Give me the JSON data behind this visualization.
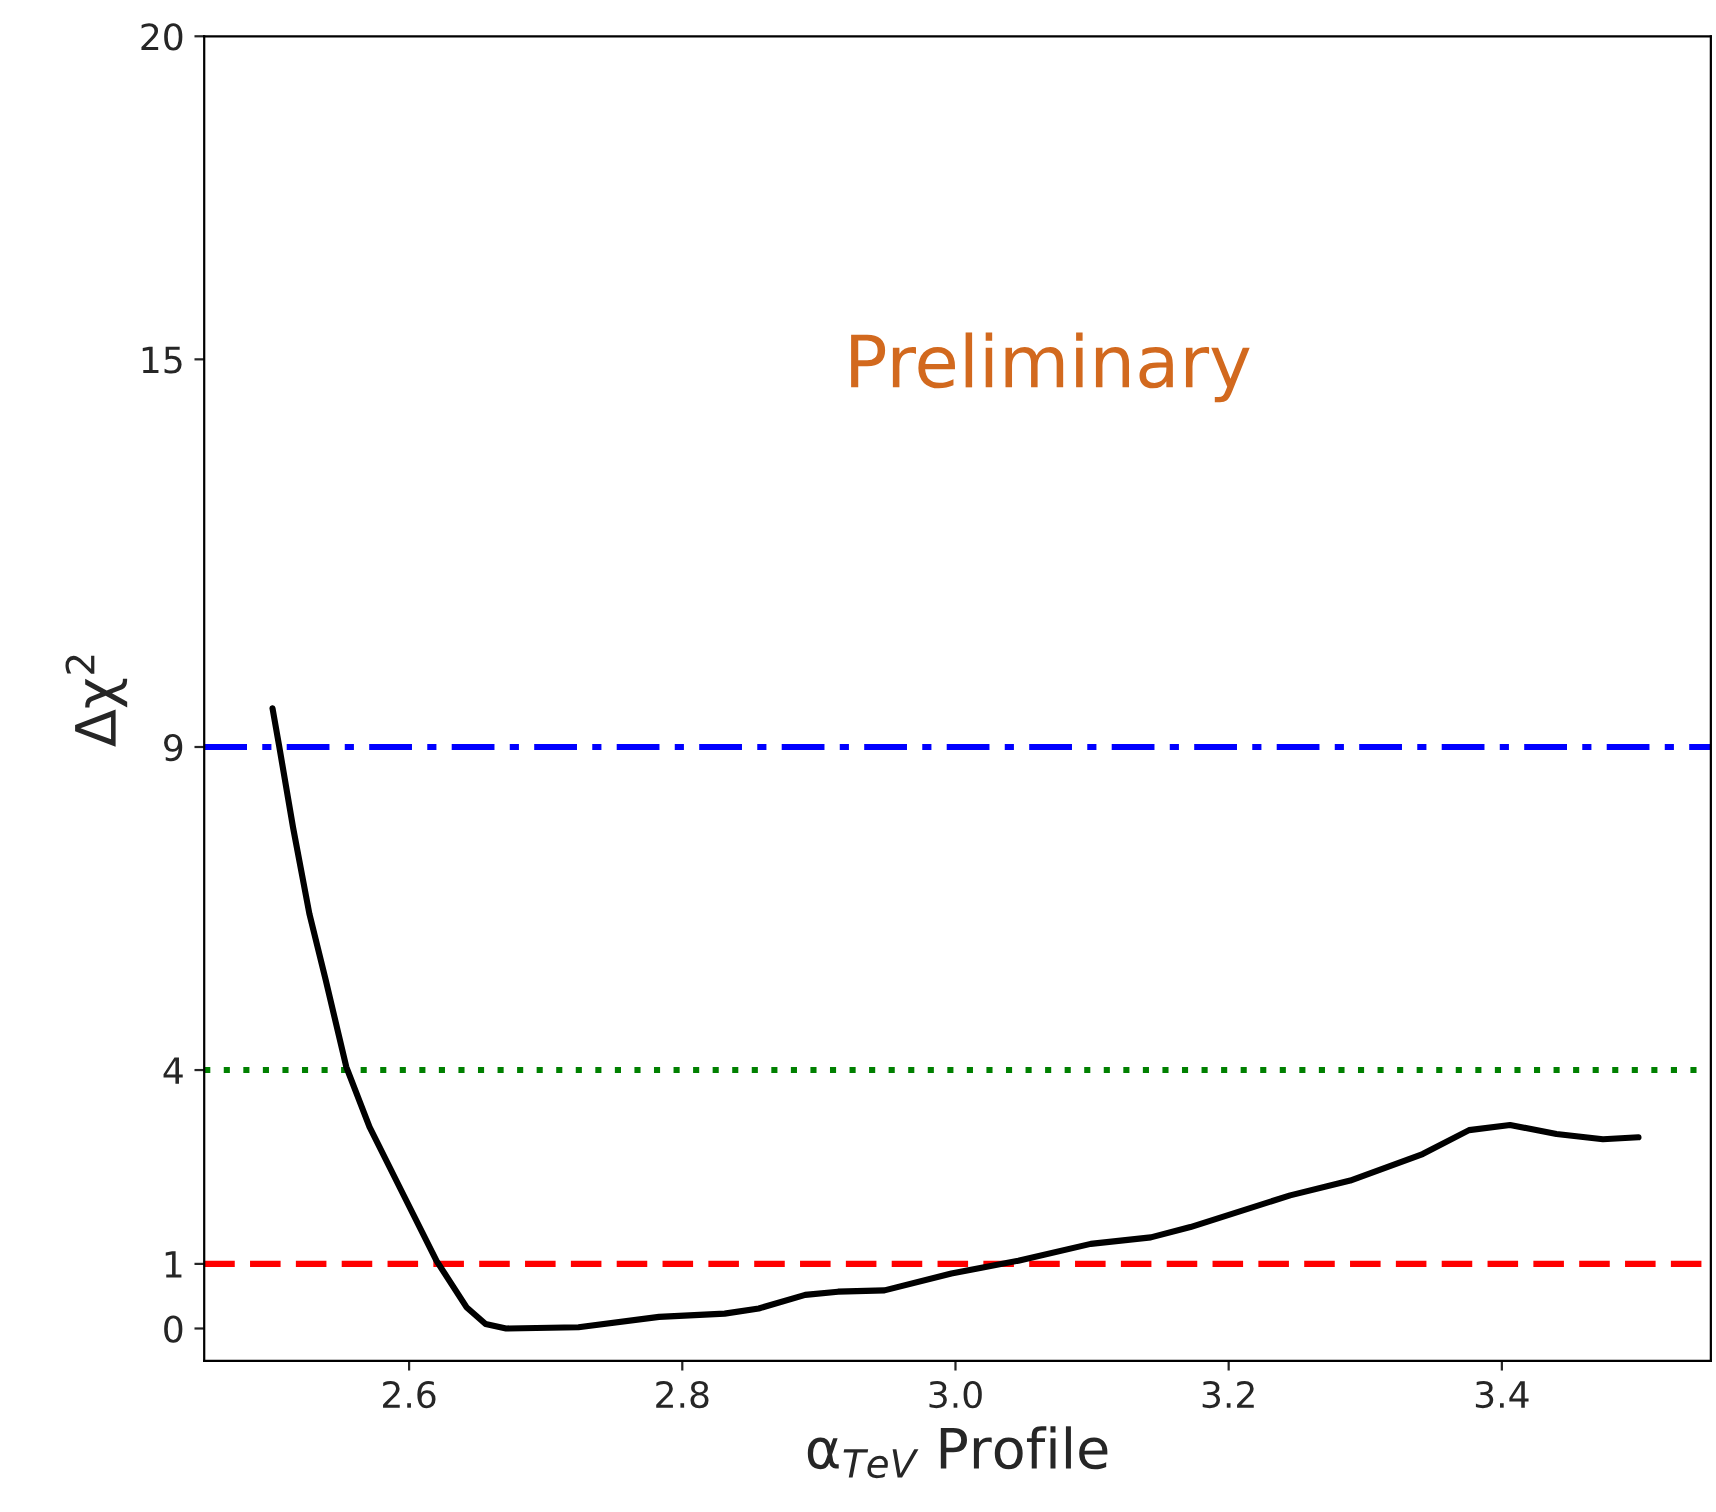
{
  "chart_data": {
    "type": "line",
    "xlabel": "α$_{TeV}$ Profile",
    "ylabel": "Δχ$^{2}$",
    "annotations": [
      "Preliminary"
    ],
    "xlim": [
      2.45,
      3.553
    ],
    "ylim": [
      -0.5,
      20
    ],
    "xticks": [
      2.6,
      2.8,
      {
        "value": 3,
        "label": "3.0"
      },
      3.2,
      3.4
    ],
    "yticks": [
      0,
      1,
      4,
      9,
      15,
      20
    ],
    "grid": false,
    "marker": "none",
    "line_style": "solid",
    "series": [
      {
        "color": "#000000",
        "x": [
          2.5,
          2.505,
          2.515,
          2.527,
          2.539,
          2.554,
          2.571,
          2.593,
          2.62,
          2.642,
          2.656,
          2.671,
          2.724,
          2.783,
          2.831,
          2.856,
          2.89,
          2.914,
          2.948,
          2.997,
          3.046,
          3.099,
          3.143,
          3.172,
          3.245,
          3.289,
          3.342,
          3.376,
          3.406,
          3.44,
          3.474,
          3.5
        ],
        "values": [
          9.6,
          9.0,
          7.76,
          6.42,
          5.39,
          4.05,
          3.12,
          2.19,
          1.05,
          0.33,
          0.07,
          0.0,
          0.02,
          0.18,
          0.23,
          0.31,
          0.52,
          0.57,
          0.59,
          0.85,
          1.05,
          1.31,
          1.41,
          1.57,
          2.06,
          2.29,
          2.7,
          3.07,
          3.15,
          3.01,
          2.93,
          2.96
        ]
      }
    ],
    "ref_lines": [
      {
        "axis": "y",
        "value": 9,
        "color": "#0000ff",
        "line_style": "dashdot"
      },
      {
        "axis": "y",
        "value": 4,
        "color": "#008000",
        "line_style": "dotted"
      },
      {
        "axis": "y",
        "value": 1,
        "color": "#ff0000",
        "line_style": "dashed"
      }
    ]
  }
}
